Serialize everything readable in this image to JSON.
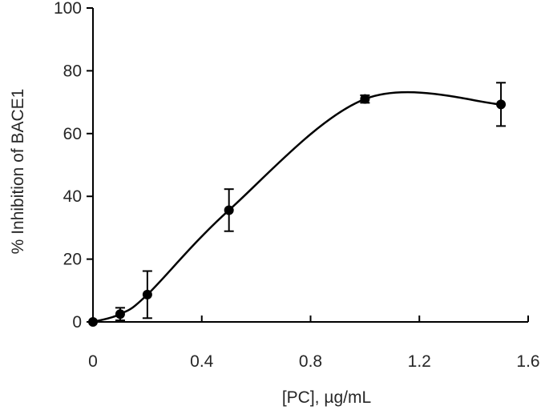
{
  "chart_data": {
    "type": "scatter",
    "title": "",
    "xlabel": "[PC], µg/mL",
    "ylabel": "% Inhibition of BACE1",
    "xlim": [
      0,
      1.6
    ],
    "ylim": [
      0,
      100
    ],
    "xticks": [
      0,
      0.4,
      0.8,
      1.2,
      1.6
    ],
    "xtick_labels": [
      "0",
      "0.4",
      "0.8",
      "1.2",
      "1.6"
    ],
    "yticks": [
      0,
      20,
      40,
      60,
      80,
      100
    ],
    "ytick_labels": [
      "0",
      "20",
      "40",
      "60",
      "80",
      "100"
    ],
    "grid": false,
    "legend": "none",
    "marker_color": "#000000",
    "smooth_fit_line": true,
    "points": [
      {
        "x": 0,
        "y": 0,
        "error": 0
      },
      {
        "x": 0.1,
        "y": 2.5,
        "error": 2.0
      },
      {
        "x": 0.2,
        "y": 8.7,
        "error": 7.5
      },
      {
        "x": 0.5,
        "y": 35.6,
        "error": 6.7
      },
      {
        "x": 1.0,
        "y": 71.0,
        "error": 1.2
      },
      {
        "x": 1.5,
        "y": 69.3,
        "error": 6.9
      }
    ]
  }
}
